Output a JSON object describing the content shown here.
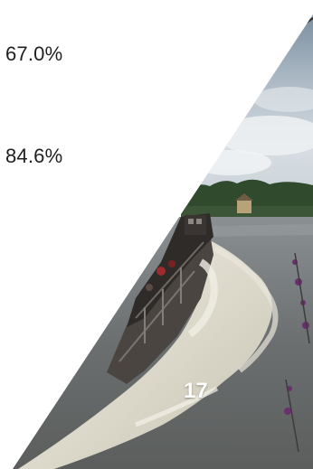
{
  "stats": [
    {
      "value": "67.0%"
    },
    {
      "value": "84.6%"
    }
  ],
  "photo": {
    "subject": "boat-on-lake"
  },
  "slide": {
    "number": "17"
  }
}
